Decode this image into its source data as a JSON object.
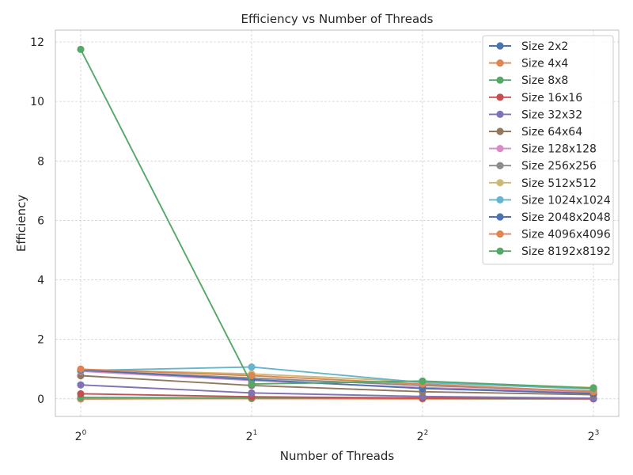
{
  "chart_data": {
    "type": "line",
    "title": "Efficiency vs Number of Threads",
    "xlabel": "Number of Threads",
    "ylabel": "Efficiency",
    "x": [
      1,
      2,
      4,
      8
    ],
    "x_tick_labels": [
      {
        "base": "2",
        "exp": "0"
      },
      {
        "base": "2",
        "exp": "1"
      },
      {
        "base": "2",
        "exp": "2"
      },
      {
        "base": "2",
        "exp": "3"
      }
    ],
    "x_scale": "log2",
    "y_ticks": [
      0,
      2,
      4,
      6,
      8,
      10,
      12
    ],
    "ylim": [
      -0.59,
      12.4
    ],
    "grid": true,
    "legend_position": "top-right",
    "series": [
      {
        "name": "Size 2x2",
        "color": "#4c72b0",
        "values": [
          0.0,
          0.02,
          0.01,
          0.0
        ]
      },
      {
        "name": "Size 4x4",
        "color": "#dd8452",
        "values": [
          0.0,
          0.01,
          0.0,
          0.0
        ]
      },
      {
        "name": "Size 8x8",
        "color": "#55a868",
        "values": [
          0.05,
          0.03,
          0.02,
          0.01
        ]
      },
      {
        "name": "Size 16x16",
        "color": "#c44e52",
        "values": [
          0.17,
          0.07,
          0.03,
          0.01
        ]
      },
      {
        "name": "Size 32x32",
        "color": "#8172b3",
        "values": [
          0.47,
          0.2,
          0.08,
          0.02
        ]
      },
      {
        "name": "Size 64x64",
        "color": "#937860",
        "values": [
          0.78,
          0.45,
          0.24,
          0.14
        ]
      },
      {
        "name": "Size 128x128",
        "color": "#da8bc3",
        "values": [
          0.93,
          0.62,
          0.38,
          0.22
        ]
      },
      {
        "name": "Size 256x256",
        "color": "#8c8c8c",
        "values": [
          0.96,
          0.7,
          0.45,
          0.26
        ]
      },
      {
        "name": "Size 512x512",
        "color": "#ccb974",
        "values": [
          0.98,
          0.84,
          0.57,
          0.38
        ]
      },
      {
        "name": "Size 1024x1024",
        "color": "#64b5cd",
        "values": [
          0.95,
          1.07,
          0.55,
          0.33
        ]
      },
      {
        "name": "Size 2048x2048",
        "color": "#4c72b0",
        "values": [
          0.97,
          0.65,
          0.35,
          0.18
        ]
      },
      {
        "name": "Size 4096x4096",
        "color": "#dd8452",
        "values": [
          1.0,
          0.78,
          0.5,
          0.24
        ]
      },
      {
        "name": "Size 8192x8192",
        "color": "#55a868",
        "values": [
          11.75,
          0.5,
          0.6,
          0.36
        ]
      }
    ]
  }
}
